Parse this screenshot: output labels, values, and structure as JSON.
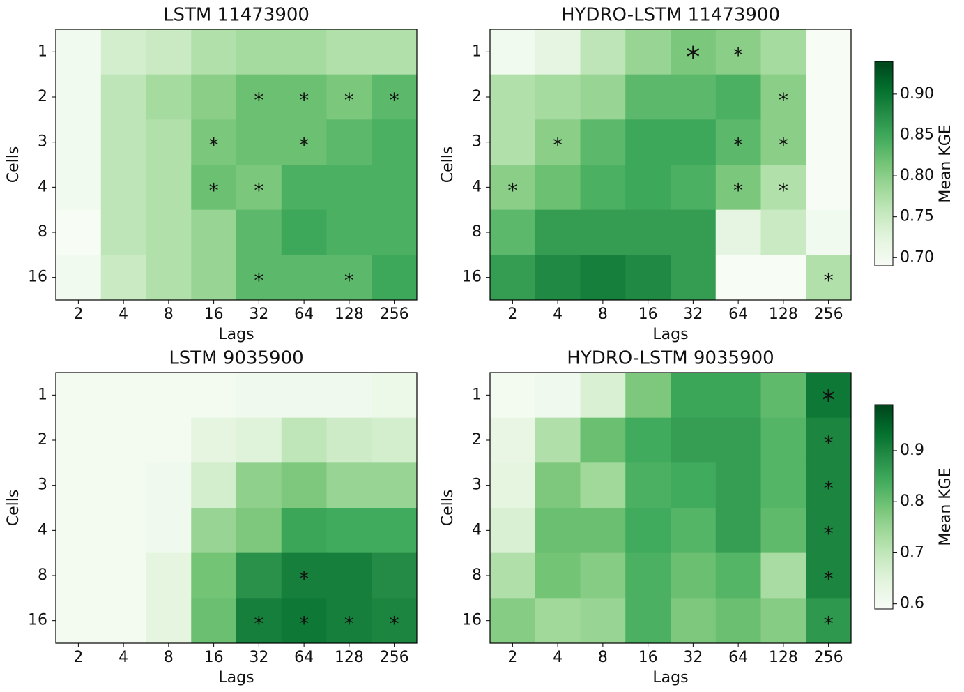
{
  "chart_data": [
    {
      "type": "heatmap",
      "title": "LSTM 11473900",
      "x_label": "Lags",
      "y_label": "Cells",
      "x": [
        "2",
        "4",
        "8",
        "16",
        "32",
        "64",
        "128",
        "256"
      ],
      "y": [
        "1",
        "2",
        "3",
        "4",
        "8",
        "16"
      ],
      "cmap": "Greens",
      "vlim": [
        0.69,
        0.94
      ],
      "values": [
        [
          0.7,
          0.74,
          0.75,
          0.77,
          0.78,
          0.78,
          0.77,
          0.77
        ],
        [
          0.7,
          0.76,
          0.78,
          0.8,
          0.82,
          0.82,
          0.81,
          0.83
        ],
        [
          0.7,
          0.76,
          0.77,
          0.81,
          0.82,
          0.82,
          0.83,
          0.84
        ],
        [
          0.7,
          0.76,
          0.77,
          0.82,
          0.81,
          0.84,
          0.84,
          0.84
        ],
        [
          0.69,
          0.76,
          0.77,
          0.79,
          0.83,
          0.85,
          0.84,
          0.84
        ],
        [
          0.7,
          0.75,
          0.77,
          0.79,
          0.83,
          0.83,
          0.83,
          0.85
        ]
      ],
      "annotations": [
        {
          "row": "2",
          "col": "32",
          "text": "*",
          "color": "black"
        },
        {
          "row": "2",
          "col": "64",
          "text": "*",
          "color": "black"
        },
        {
          "row": "2",
          "col": "128",
          "text": "*",
          "color": "black"
        },
        {
          "row": "2",
          "col": "256",
          "text": "*",
          "color": "black"
        },
        {
          "row": "3",
          "col": "16",
          "text": "*",
          "color": "black"
        },
        {
          "row": "3",
          "col": "64",
          "text": "*",
          "color": "black"
        },
        {
          "row": "4",
          "col": "16",
          "text": "*",
          "color": "black"
        },
        {
          "row": "4",
          "col": "32",
          "text": "*",
          "color": "black"
        },
        {
          "row": "16",
          "col": "32",
          "text": "*",
          "color": "black"
        },
        {
          "row": "16",
          "col": "128",
          "text": "*",
          "color": "black"
        }
      ]
    },
    {
      "type": "heatmap",
      "title": "HYDRO-LSTM 11473900",
      "x_label": "Lags",
      "y_label": "Cells",
      "x": [
        "2",
        "4",
        "8",
        "16",
        "32",
        "64",
        "128",
        "256"
      ],
      "y": [
        "1",
        "2",
        "3",
        "4",
        "8",
        "16"
      ],
      "cmap": "Greens",
      "vlim": [
        0.69,
        0.94
      ],
      "values": [
        [
          0.7,
          0.72,
          0.76,
          0.79,
          0.81,
          0.8,
          0.78,
          0.69
        ],
        [
          0.77,
          0.78,
          0.79,
          0.83,
          0.83,
          0.84,
          0.8,
          0.69
        ],
        [
          0.77,
          0.8,
          0.83,
          0.85,
          0.85,
          0.83,
          0.8,
          0.69
        ],
        [
          0.8,
          0.82,
          0.84,
          0.85,
          0.84,
          0.81,
          0.77,
          0.69
        ],
        [
          0.83,
          0.86,
          0.86,
          0.86,
          0.86,
          0.72,
          0.75,
          0.7
        ],
        [
          0.86,
          0.88,
          0.89,
          0.88,
          0.86,
          0.69,
          0.69,
          0.77
        ]
      ],
      "annotations": [
        {
          "row": "1",
          "col": "32",
          "text": "*",
          "color": "red"
        },
        {
          "row": "1",
          "col": "64",
          "text": "*",
          "color": "black"
        },
        {
          "row": "2",
          "col": "128",
          "text": "*",
          "color": "black"
        },
        {
          "row": "3",
          "col": "4",
          "text": "*",
          "color": "black"
        },
        {
          "row": "3",
          "col": "64",
          "text": "*",
          "color": "black"
        },
        {
          "row": "3",
          "col": "128",
          "text": "*",
          "color": "black"
        },
        {
          "row": "4",
          "col": "2",
          "text": "*",
          "color": "black"
        },
        {
          "row": "4",
          "col": "64",
          "text": "*",
          "color": "black"
        },
        {
          "row": "4",
          "col": "128",
          "text": "*",
          "color": "black"
        },
        {
          "row": "16",
          "col": "256",
          "text": "*",
          "color": "black"
        }
      ],
      "colorbar": {
        "label": "Mean KGE",
        "ticks": [
          {
            "value": 0.7,
            "label": "0.70"
          },
          0.75,
          {
            "value": 0.8,
            "label": "0.80"
          },
          0.85,
          {
            "value": 0.9,
            "label": "0.90"
          }
        ]
      }
    },
    {
      "type": "heatmap",
      "title": "LSTM 9035900",
      "x_label": "Lags",
      "y_label": "Cells",
      "x": [
        "2",
        "4",
        "8",
        "16",
        "32",
        "64",
        "128",
        "256"
      ],
      "y": [
        "1",
        "2",
        "3",
        "4",
        "8",
        "16"
      ],
      "cmap": "Greens",
      "vlim": [
        0.59,
        0.99
      ],
      "values": [
        [
          0.6,
          0.6,
          0.6,
          0.6,
          0.61,
          0.61,
          0.61,
          0.62
        ],
        [
          0.6,
          0.6,
          0.6,
          0.64,
          0.65,
          0.7,
          0.68,
          0.67
        ],
        [
          0.6,
          0.6,
          0.61,
          0.67,
          0.76,
          0.78,
          0.75,
          0.75
        ],
        [
          0.6,
          0.6,
          0.61,
          0.75,
          0.78,
          0.85,
          0.84,
          0.84
        ],
        [
          0.6,
          0.6,
          0.64,
          0.79,
          0.88,
          0.91,
          0.91,
          0.89
        ],
        [
          0.6,
          0.6,
          0.64,
          0.8,
          0.91,
          0.92,
          0.91,
          0.9
        ]
      ],
      "annotations": [
        {
          "row": "8",
          "col": "64",
          "text": "*",
          "color": "black"
        },
        {
          "row": "16",
          "col": "32",
          "text": "*",
          "color": "black"
        },
        {
          "row": "16",
          "col": "64",
          "text": "*",
          "color": "black"
        },
        {
          "row": "16",
          "col": "128",
          "text": "*",
          "color": "black"
        },
        {
          "row": "16",
          "col": "256",
          "text": "*",
          "color": "black"
        }
      ]
    },
    {
      "type": "heatmap",
      "title": "HYDRO-LSTM 9035900",
      "x_label": "Lags",
      "y_label": "Cells",
      "x": [
        "2",
        "4",
        "8",
        "16",
        "32",
        "64",
        "128",
        "256"
      ],
      "y": [
        "1",
        "2",
        "3",
        "4",
        "8",
        "16"
      ],
      "cmap": "Greens",
      "vlim": [
        0.59,
        0.99
      ],
      "values": [
        [
          0.6,
          0.61,
          0.66,
          0.78,
          0.85,
          0.85,
          0.81,
          0.92
        ],
        [
          0.63,
          0.72,
          0.8,
          0.84,
          0.86,
          0.86,
          0.82,
          0.9
        ],
        [
          0.64,
          0.78,
          0.74,
          0.83,
          0.84,
          0.86,
          0.82,
          0.9
        ],
        [
          0.66,
          0.8,
          0.8,
          0.84,
          0.82,
          0.86,
          0.81,
          0.9
        ],
        [
          0.72,
          0.79,
          0.77,
          0.83,
          0.8,
          0.82,
          0.73,
          0.9
        ],
        [
          0.77,
          0.74,
          0.75,
          0.83,
          0.78,
          0.8,
          0.77,
          0.87
        ]
      ],
      "annotations": [
        {
          "row": "1",
          "col": "256",
          "text": "*",
          "color": "red"
        },
        {
          "row": "2",
          "col": "256",
          "text": "*",
          "color": "black"
        },
        {
          "row": "3",
          "col": "256",
          "text": "*",
          "color": "black"
        },
        {
          "row": "4",
          "col": "256",
          "text": "*",
          "color": "black"
        },
        {
          "row": "8",
          "col": "256",
          "text": "*",
          "color": "black"
        },
        {
          "row": "16",
          "col": "256",
          "text": "*",
          "color": "black"
        }
      ],
      "colorbar": {
        "label": "Mean KGE",
        "ticks": [
          0.6,
          0.7,
          0.8,
          0.9
        ]
      }
    }
  ]
}
